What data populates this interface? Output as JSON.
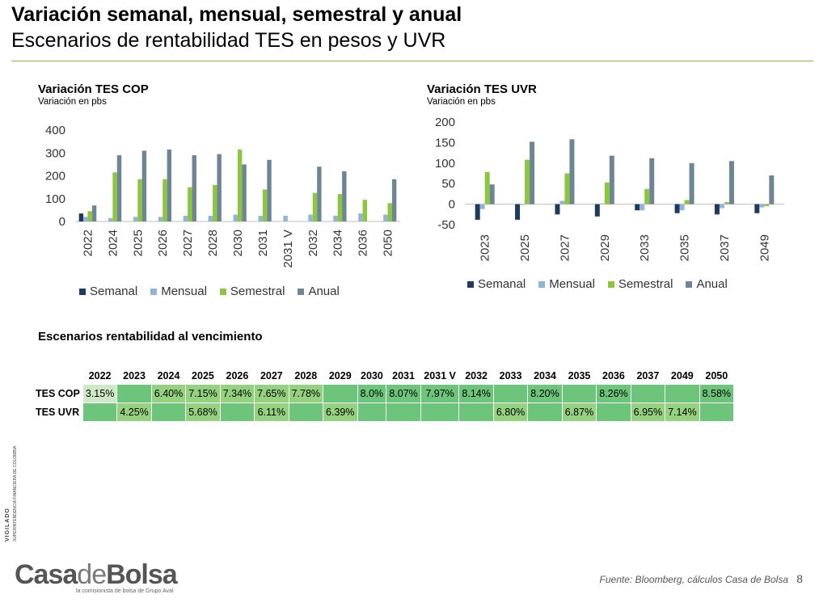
{
  "header": {
    "title": "Variación semanal, mensual, semestral y anual",
    "subtitle": "Escenarios de rentabilidad TES en pesos y UVR"
  },
  "colors": {
    "semanal": "#1f3a5f",
    "mensual": "#92b4db",
    "semestral": "#8cc63e",
    "anual": "#6e8596"
  },
  "chart_data": [
    {
      "type": "bar",
      "title": "Variación TES COP",
      "subtitle": "Variación en pbs",
      "categories": [
        "2022",
        "2024",
        "2025",
        "2026",
        "2027",
        "2028",
        "2030",
        "2031",
        "2031 V",
        "2032",
        "2034",
        "2036",
        "2050"
      ],
      "series": [
        {
          "name": "Semanal",
          "values": [
            35,
            0,
            0,
            0,
            0,
            0,
            0,
            0,
            0,
            0,
            0,
            0,
            0
          ]
        },
        {
          "name": "Mensual",
          "values": [
            20,
            15,
            20,
            20,
            25,
            25,
            30,
            25,
            25,
            30,
            25,
            35,
            30
          ]
        },
        {
          "name": "Semestral",
          "values": [
            45,
            215,
            185,
            185,
            150,
            160,
            315,
            140,
            0,
            125,
            120,
            95,
            80
          ]
        },
        {
          "name": "Anual",
          "values": [
            70,
            290,
            310,
            315,
            290,
            295,
            250,
            270,
            0,
            240,
            220,
            0,
            185
          ]
        }
      ],
      "yticks": [
        0,
        100,
        200,
        300,
        400
      ],
      "ylim": [
        0,
        400
      ],
      "legend": "bottom",
      "grid": false
    },
    {
      "type": "bar",
      "title": "Variación TES UVR",
      "subtitle": "Variación en pbs",
      "categories": [
        "2023",
        "2025",
        "2027",
        "2029",
        "2033",
        "2035",
        "2037",
        "2049"
      ],
      "series": [
        {
          "name": "Semanal",
          "values": [
            -38,
            -38,
            -25,
            -30,
            -15,
            -22,
            -25,
            -22
          ]
        },
        {
          "name": "Mensual",
          "values": [
            -12,
            -2,
            8,
            2,
            -15,
            -15,
            -10,
            -8
          ]
        },
        {
          "name": "Semestral",
          "values": [
            78,
            108,
            75,
            53,
            37,
            10,
            5,
            -5
          ]
        },
        {
          "name": "Anual",
          "values": [
            48,
            152,
            158,
            118,
            112,
            100,
            105,
            70
          ]
        }
      ],
      "yticks": [
        -50,
        0,
        50,
        100,
        150,
        200
      ],
      "ylim": [
        -50,
        200
      ],
      "legend": "bottom",
      "grid": false
    }
  ],
  "table": {
    "title": "Escenarios rentabilidad al vencimiento",
    "columns": [
      "2022",
      "2023",
      "2024",
      "2025",
      "2026",
      "2027",
      "2028",
      "2029",
      "2030",
      "2031",
      "2031 V",
      "2032",
      "2033",
      "2034",
      "2035",
      "2036",
      "2037",
      "2049",
      "2050"
    ],
    "rows": [
      {
        "label": "TES COP",
        "cells": [
          {
            "v": "3.15%",
            "s": "g0"
          },
          {
            "v": "",
            "s": "g2"
          },
          {
            "v": "6.40%",
            "s": "g1"
          },
          {
            "v": "7.15%",
            "s": "g1"
          },
          {
            "v": "7.34%",
            "s": "g1"
          },
          {
            "v": "7.65%",
            "s": "g1"
          },
          {
            "v": "7.78%",
            "s": "g1"
          },
          {
            "v": "",
            "s": "g2"
          },
          {
            "v": "8.0%",
            "s": "g2"
          },
          {
            "v": "8.07%",
            "s": "g2"
          },
          {
            "v": "7.97%",
            "s": "g2"
          },
          {
            "v": "8.14%",
            "s": "g2"
          },
          {
            "v": "",
            "s": "g2"
          },
          {
            "v": "8.20%",
            "s": "g2"
          },
          {
            "v": "",
            "s": "g2"
          },
          {
            "v": "8.26%",
            "s": "g2"
          },
          {
            "v": "",
            "s": "g2"
          },
          {
            "v": "",
            "s": "g2"
          },
          {
            "v": "8.58%",
            "s": "g2"
          }
        ]
      },
      {
        "label": "TES UVR",
        "cells": [
          {
            "v": "",
            "s": "g2"
          },
          {
            "v": "4.25%",
            "s": "g1"
          },
          {
            "v": "",
            "s": "g2"
          },
          {
            "v": "5.68%",
            "s": "g1"
          },
          {
            "v": "",
            "s": "g2"
          },
          {
            "v": "6.11%",
            "s": "g1"
          },
          {
            "v": "",
            "s": "g2"
          },
          {
            "v": "6.39%",
            "s": "g1"
          },
          {
            "v": "",
            "s": "g2"
          },
          {
            "v": "",
            "s": "g2"
          },
          {
            "v": "",
            "s": "g2"
          },
          {
            "v": "",
            "s": "g2"
          },
          {
            "v": "6.80%",
            "s": "g1"
          },
          {
            "v": "",
            "s": "g2"
          },
          {
            "v": "6.87%",
            "s": "g1"
          },
          {
            "v": "",
            "s": "g2"
          },
          {
            "v": "6.95%",
            "s": "g1"
          },
          {
            "v": "7.14%",
            "s": "g1"
          },
          {
            "v": "",
            "s": "g2"
          }
        ]
      }
    ]
  },
  "footer": {
    "vigilado": "VIGILADO",
    "vigilado_sub": "SUPERINTENDENCIA FINANCIERA DE COLOMBIA",
    "logo": {
      "part1": "Casa",
      "part2": "de",
      "part3": "Bolsa"
    },
    "logo_tagline": "la comisionista de bolsa de Grupo Aval",
    "source": "Fuente: Bloomberg, cálculos Casa de Bolsa",
    "page": "8"
  }
}
